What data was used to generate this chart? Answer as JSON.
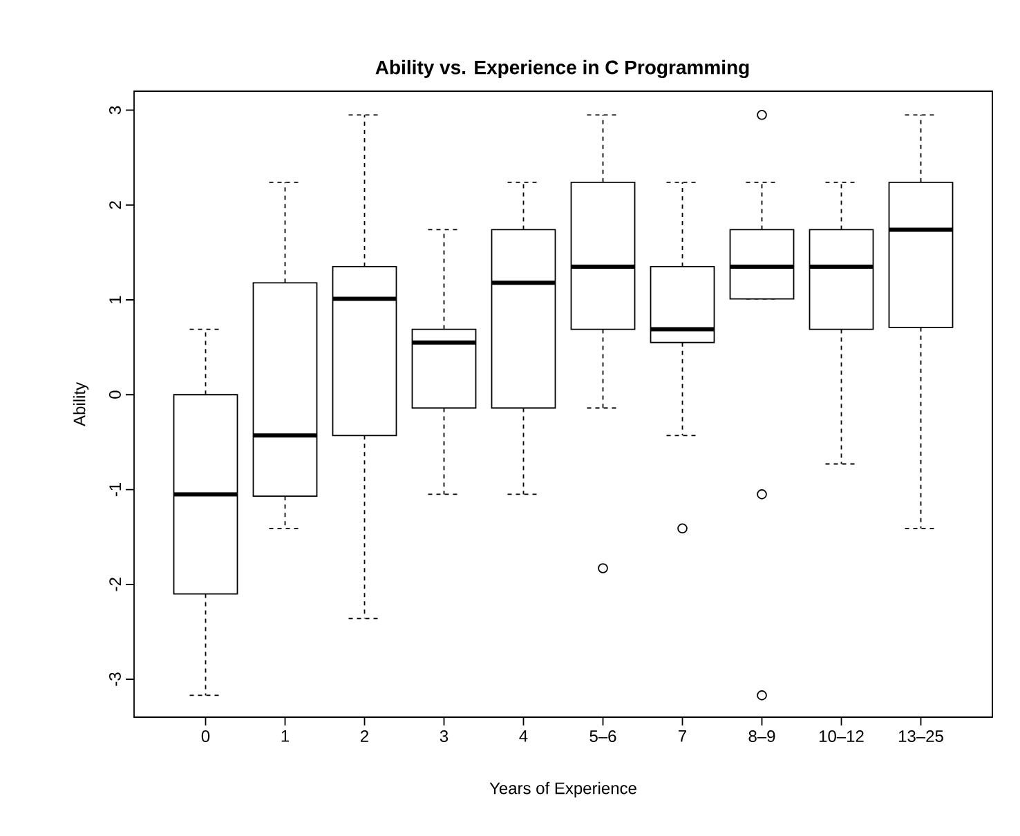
{
  "chart_data": {
    "type": "box",
    "title": "Ability vs. Experience in C Programming",
    "xlabel": "Years of Experience",
    "ylabel": "Ability",
    "categories": [
      "0",
      "1",
      "2",
      "3",
      "4",
      "5–6",
      "7",
      "8–9",
      "10–12",
      "13–25"
    ],
    "color": "#000000",
    "boxes": [
      {
        "low": -3.17,
        "q1": -2.1,
        "median": -1.05,
        "q3": 0,
        "high": 0.69
      },
      {
        "low": -1.41,
        "q1": -1.07,
        "median": -0.43,
        "q3": 1.18,
        "high": 2.24
      },
      {
        "low": -2.36,
        "q1": -0.43,
        "median": 1.01,
        "q3": 1.35,
        "high": 2.95
      },
      {
        "low": -1.05,
        "q1": -0.14,
        "median": 0.55,
        "q3": 0.69,
        "high": 1.74
      },
      {
        "low": -1.05,
        "q1": -0.14,
        "median": 1.18,
        "q3": 1.74,
        "high": 2.24
      },
      {
        "low": -0.14,
        "q1": 0.69,
        "median": 1.35,
        "q3": 2.24,
        "high": 2.95,
        "outliers": [
          -1.83
        ]
      },
      {
        "low": -0.43,
        "q1": 0.55,
        "median": 0.69,
        "q3": 1.35,
        "high": 2.24,
        "outliers": [
          -1.41
        ]
      },
      {
        "low": 1.01,
        "q1": 1.01,
        "median": 1.35,
        "q3": 1.74,
        "high": 2.24,
        "outliers": [
          2.95,
          -1.05,
          -3.17
        ]
      },
      {
        "low": -0.73,
        "q1": 0.69,
        "median": 1.35,
        "q3": 1.74,
        "high": 2.24
      },
      {
        "low": -1.41,
        "q1": 0.71,
        "median": 1.74,
        "q3": 2.24,
        "high": 2.95
      }
    ],
    "ylim": [
      -3.4,
      3.2
    ],
    "yticks": [
      -3,
      -2,
      -1,
      0,
      1,
      2,
      3
    ]
  }
}
